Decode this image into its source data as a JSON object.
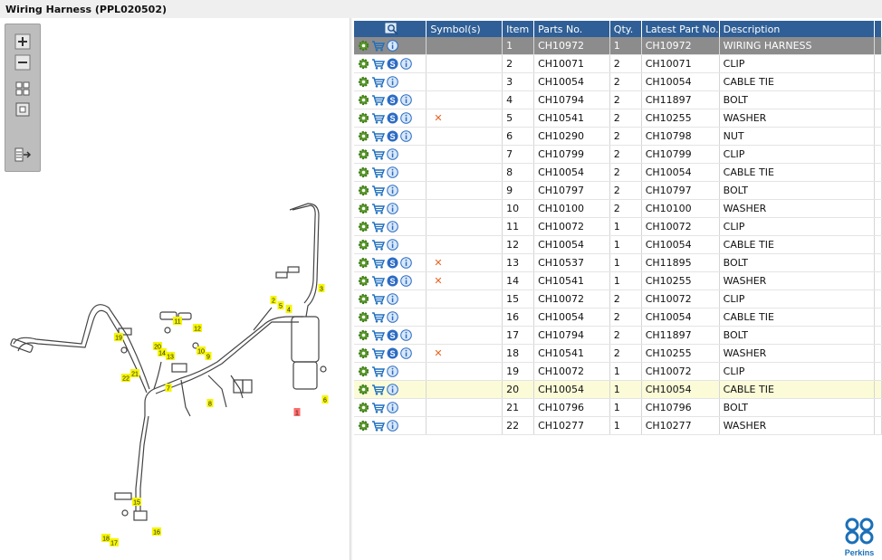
{
  "window": {
    "title": "Wiring Harness (PPL020502)"
  },
  "columns": [
    "Symbol(s)",
    "Item",
    "Parts No.",
    "Qty.",
    "Latest Part No.",
    "Description"
  ],
  "icons": {
    "zoom_in": "zoom-in-icon",
    "zoom_out": "zoom-out-icon",
    "fit": "fit-grid-icon",
    "actual_size": "square-icon",
    "export": "export-icon",
    "header_search": "search-icon",
    "row_actions": [
      "gear-icon",
      "cart-icon",
      "s-badge-icon",
      "info-icon"
    ],
    "symbol": "cross-icon"
  },
  "colors": {
    "header_bg": "#2f5f96",
    "selected_row": "#8c8c8c",
    "highlight_row": "#fbfbd8",
    "callout_yellow": "#f5f500",
    "symbol_orange": "#e8621e"
  },
  "rows": [
    {
      "item": "1",
      "part": "CH10972",
      "qty": "1",
      "latest": "CH10972",
      "desc": "WIRING HARNESS",
      "s": false,
      "x": false,
      "state": "sel"
    },
    {
      "item": "2",
      "part": "CH10071",
      "qty": "2",
      "latest": "CH10071",
      "desc": "CLIP",
      "s": true,
      "x": false,
      "state": ""
    },
    {
      "item": "3",
      "part": "CH10054",
      "qty": "2",
      "latest": "CH10054",
      "desc": "CABLE TIE",
      "s": false,
      "x": false,
      "state": ""
    },
    {
      "item": "4",
      "part": "CH10794",
      "qty": "2",
      "latest": "CH11897",
      "desc": "BOLT",
      "s": true,
      "x": false,
      "state": ""
    },
    {
      "item": "5",
      "part": "CH10541",
      "qty": "2",
      "latest": "CH10255",
      "desc": "WASHER",
      "s": true,
      "x": true,
      "state": ""
    },
    {
      "item": "6",
      "part": "CH10290",
      "qty": "2",
      "latest": "CH10798",
      "desc": "NUT",
      "s": true,
      "x": false,
      "state": ""
    },
    {
      "item": "7",
      "part": "CH10799",
      "qty": "2",
      "latest": "CH10799",
      "desc": "CLIP",
      "s": false,
      "x": false,
      "state": ""
    },
    {
      "item": "8",
      "part": "CH10054",
      "qty": "2",
      "latest": "CH10054",
      "desc": "CABLE TIE",
      "s": false,
      "x": false,
      "state": ""
    },
    {
      "item": "9",
      "part": "CH10797",
      "qty": "2",
      "latest": "CH10797",
      "desc": "BOLT",
      "s": false,
      "x": false,
      "state": ""
    },
    {
      "item": "10",
      "part": "CH10100",
      "qty": "2",
      "latest": "CH10100",
      "desc": "WASHER",
      "s": false,
      "x": false,
      "state": ""
    },
    {
      "item": "11",
      "part": "CH10072",
      "qty": "1",
      "latest": "CH10072",
      "desc": "CLIP",
      "s": false,
      "x": false,
      "state": ""
    },
    {
      "item": "12",
      "part": "CH10054",
      "qty": "1",
      "latest": "CH10054",
      "desc": "CABLE TIE",
      "s": false,
      "x": false,
      "state": ""
    },
    {
      "item": "13",
      "part": "CH10537",
      "qty": "1",
      "latest": "CH11895",
      "desc": "BOLT",
      "s": true,
      "x": true,
      "state": ""
    },
    {
      "item": "14",
      "part": "CH10541",
      "qty": "1",
      "latest": "CH10255",
      "desc": "WASHER",
      "s": true,
      "x": true,
      "state": ""
    },
    {
      "item": "15",
      "part": "CH10072",
      "qty": "2",
      "latest": "CH10072",
      "desc": "CLIP",
      "s": false,
      "x": false,
      "state": ""
    },
    {
      "item": "16",
      "part": "CH10054",
      "qty": "2",
      "latest": "CH10054",
      "desc": "CABLE TIE",
      "s": false,
      "x": false,
      "state": ""
    },
    {
      "item": "17",
      "part": "CH10794",
      "qty": "2",
      "latest": "CH11897",
      "desc": "BOLT",
      "s": true,
      "x": false,
      "state": ""
    },
    {
      "item": "18",
      "part": "CH10541",
      "qty": "2",
      "latest": "CH10255",
      "desc": "WASHER",
      "s": true,
      "x": true,
      "state": ""
    },
    {
      "item": "19",
      "part": "CH10072",
      "qty": "1",
      "latest": "CH10072",
      "desc": "CLIP",
      "s": false,
      "x": false,
      "state": ""
    },
    {
      "item": "20",
      "part": "CH10054",
      "qty": "1",
      "latest": "CH10054",
      "desc": "CABLE TIE",
      "s": false,
      "x": false,
      "state": "hl"
    },
    {
      "item": "21",
      "part": "CH10796",
      "qty": "1",
      "latest": "CH10796",
      "desc": "BOLT",
      "s": false,
      "x": false,
      "state": ""
    },
    {
      "item": "22",
      "part": "CH10277",
      "qty": "1",
      "latest": "CH10277",
      "desc": "WASHER",
      "s": false,
      "x": false,
      "state": ""
    }
  ],
  "callouts": [
    "1",
    "2",
    "3",
    "4",
    "5",
    "6",
    "7",
    "8",
    "9",
    "10",
    "11",
    "12",
    "13",
    "14",
    "15",
    "16",
    "17",
    "18",
    "19",
    "20",
    "21",
    "22"
  ],
  "logo": {
    "text": "Perkins"
  }
}
